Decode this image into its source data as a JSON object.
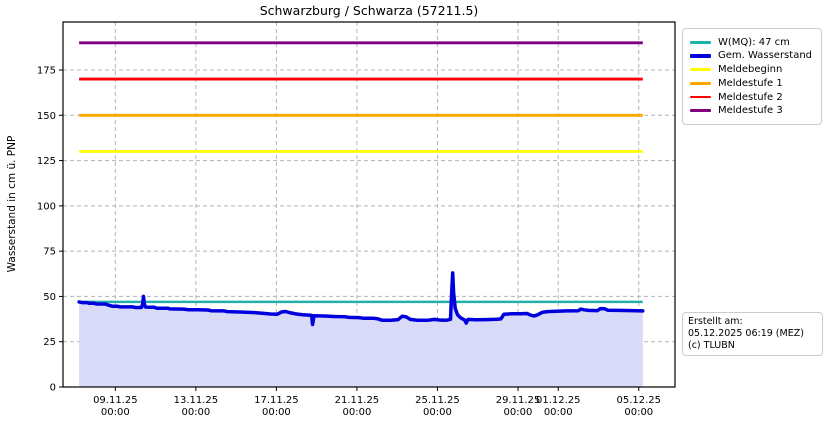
{
  "header": {
    "title": "Schwarzburg / Schwarza (57211.5)"
  },
  "chart_data": {
    "type": "line",
    "title": "Schwarzburg / Schwarza (57211.5)",
    "xlabel": "",
    "ylabel": "Wasserstand in cm ü. PNP",
    "ylim": [
      0,
      201.5
    ],
    "yticks": [
      0,
      25,
      50,
      75,
      100,
      125,
      150,
      175
    ],
    "grid": true,
    "legend_position": "outside-right",
    "x_unit": "days since 09.11.2025 00:00",
    "xlim": [
      -2.6,
      27.8
    ],
    "data_range_days": [
      -1.8,
      26.2
    ],
    "xticks": [
      {
        "pos": 0,
        "date": "09.11.25",
        "time": "00:00"
      },
      {
        "pos": 4,
        "date": "13.11.25",
        "time": "00:00"
      },
      {
        "pos": 8,
        "date": "17.11.25",
        "time": "00:00"
      },
      {
        "pos": 12,
        "date": "21.11.25",
        "time": "00:00"
      },
      {
        "pos": 16,
        "date": "25.11.25",
        "time": "00:00"
      },
      {
        "pos": 20,
        "date": "29.11.25",
        "time": "00:00"
      },
      {
        "pos": 22,
        "date": "01.12.25",
        "time": "00:00"
      },
      {
        "pos": 26,
        "date": "05.12.25",
        "time": "00:00"
      }
    ],
    "thresholds": [
      {
        "name": "W(MQ): 47 cm",
        "value": 47,
        "color": "#20b2aa",
        "width": 2.5
      },
      {
        "name": "Meldebeginn",
        "value": 130,
        "color": "#ffff00",
        "width": 2.8
      },
      {
        "name": "Meldestufe 1",
        "value": 150,
        "color": "#ffa500",
        "width": 2.8
      },
      {
        "name": "Meldestufe 2",
        "value": 170,
        "color": "#ff0000",
        "width": 2.8
      },
      {
        "name": "Meldestufe 3",
        "value": 190,
        "color": "#800080",
        "width": 2.8
      }
    ],
    "series": [
      {
        "name": "Gem. Wasserstand",
        "color": "#0000dd",
        "fill": "#d9d9f8",
        "width": 3.5,
        "points": [
          [
            -1.8,
            47
          ],
          [
            -1.65,
            46.6
          ],
          [
            -1.4,
            46.6
          ],
          [
            -1.3,
            46.2
          ],
          [
            -1.05,
            46.2
          ],
          [
            -0.95,
            45.8
          ],
          [
            -0.5,
            45.8
          ],
          [
            -0.4,
            45.4
          ],
          [
            -0.15,
            44.6
          ],
          [
            0.1,
            44.6
          ],
          [
            0.25,
            44.2
          ],
          [
            0.85,
            44.2
          ],
          [
            1.0,
            43.9
          ],
          [
            1.3,
            43.9
          ],
          [
            1.36,
            46
          ],
          [
            1.4,
            50
          ],
          [
            1.44,
            46
          ],
          [
            1.5,
            44.1
          ],
          [
            1.95,
            44.0
          ],
          [
            2.05,
            43.5
          ],
          [
            2.6,
            43.5
          ],
          [
            2.7,
            43.1
          ],
          [
            3.4,
            43.0
          ],
          [
            3.6,
            42.7
          ],
          [
            4.1,
            42.6
          ],
          [
            4.6,
            42.5
          ],
          [
            4.75,
            42.1
          ],
          [
            5.4,
            42.0
          ],
          [
            5.55,
            41.6
          ],
          [
            6.2,
            41.4
          ],
          [
            6.9,
            41.1
          ],
          [
            7.3,
            40.7
          ],
          [
            7.7,
            40.3
          ],
          [
            8.05,
            40.2
          ],
          [
            8.25,
            41.4
          ],
          [
            8.45,
            41.7
          ],
          [
            8.65,
            41.1
          ],
          [
            9.0,
            40.3
          ],
          [
            9.3,
            39.9
          ],
          [
            9.6,
            39.7
          ],
          [
            9.75,
            39.5
          ],
          [
            9.8,
            34.5
          ],
          [
            9.87,
            39.3
          ],
          [
            10.4,
            39.2
          ],
          [
            10.85,
            38.9
          ],
          [
            11.4,
            38.8
          ],
          [
            11.6,
            38.4
          ],
          [
            12.1,
            38.3
          ],
          [
            12.35,
            37.9
          ],
          [
            12.85,
            37.9
          ],
          [
            13.05,
            37.6
          ],
          [
            13.25,
            36.9
          ],
          [
            13.7,
            36.8
          ],
          [
            14.05,
            37.2
          ],
          [
            14.25,
            39.1
          ],
          [
            14.45,
            38.7
          ],
          [
            14.65,
            37.3
          ],
          [
            15.0,
            36.9
          ],
          [
            15.5,
            36.8
          ],
          [
            15.85,
            37.3
          ],
          [
            16.1,
            37.0
          ],
          [
            16.45,
            36.9
          ],
          [
            16.65,
            37.4
          ],
          [
            16.72,
            55
          ],
          [
            16.76,
            63
          ],
          [
            16.8,
            52
          ],
          [
            16.88,
            43.5
          ],
          [
            17.0,
            39.8
          ],
          [
            17.15,
            38.2
          ],
          [
            17.35,
            37.0
          ],
          [
            17.43,
            35.3
          ],
          [
            17.52,
            37.3
          ],
          [
            17.9,
            37.1
          ],
          [
            18.4,
            37.2
          ],
          [
            18.95,
            37.4
          ],
          [
            19.15,
            37.6
          ],
          [
            19.3,
            40.2
          ],
          [
            19.7,
            40.4
          ],
          [
            20.1,
            40.4
          ],
          [
            20.45,
            40.6
          ],
          [
            20.6,
            39.8
          ],
          [
            20.78,
            39.2
          ],
          [
            20.95,
            39.7
          ],
          [
            21.2,
            41.2
          ],
          [
            21.45,
            41.6
          ],
          [
            21.9,
            41.8
          ],
          [
            22.4,
            42.0
          ],
          [
            23.0,
            42.1
          ],
          [
            23.12,
            43.0
          ],
          [
            23.28,
            42.6
          ],
          [
            23.5,
            42.3
          ],
          [
            23.95,
            42.2
          ],
          [
            24.1,
            43.3
          ],
          [
            24.3,
            43.2
          ],
          [
            24.45,
            42.4
          ],
          [
            25.0,
            42.3
          ],
          [
            25.6,
            42.2
          ],
          [
            26.2,
            42.0
          ]
        ]
      }
    ],
    "colors": {
      "grid": "#b4b4b4",
      "frame": "#000000",
      "area_fill": "#d9d9f8"
    }
  },
  "legend": {
    "items": [
      {
        "label": "W(MQ): 47 cm",
        "color": "#20b2aa",
        "thick": false
      },
      {
        "label": "Gem. Wasserstand",
        "color": "#0000dd",
        "thick": true
      },
      {
        "label": "Meldebeginn",
        "color": "#ffff00",
        "thick": false
      },
      {
        "label": "Meldestufe 1",
        "color": "#ffa500",
        "thick": false
      },
      {
        "label": "Meldestufe 2",
        "color": "#ff0000",
        "thick": false
      },
      {
        "label": "Meldestufe 3",
        "color": "#800080",
        "thick": false
      }
    ]
  },
  "footer": {
    "lines": [
      "Erstellt am:",
      "05.12.2025 06:19 (MEZ)",
      "(c) TLUBN"
    ]
  }
}
